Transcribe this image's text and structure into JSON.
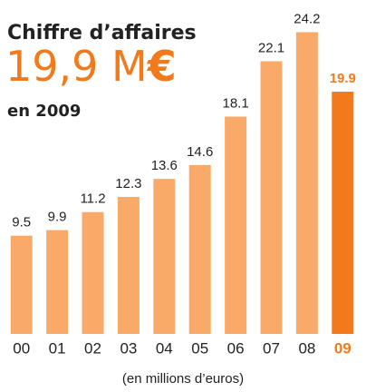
{
  "chart_data": {
    "type": "bar",
    "title": "Chiffre d’affaires",
    "headline_value": "19,9 M",
    "headline_unit": "€",
    "subtitle": "en 2009",
    "xlabel": "(en millions d’euros)",
    "categories": [
      "00",
      "01",
      "02",
      "03",
      "04",
      "05",
      "06",
      "07",
      "08",
      "09"
    ],
    "values": [
      9.5,
      9.9,
      11.2,
      12.3,
      13.6,
      14.6,
      18.1,
      22.1,
      24.2,
      19.9
    ],
    "colors": [
      "#f9aa68",
      "#f9aa68",
      "#f9aa68",
      "#f9aa68",
      "#f9aa68",
      "#f9aa68",
      "#f9aa68",
      "#f9aa68",
      "#f9aa68",
      "#f07a1c"
    ],
    "ylim": [
      2.4,
      26
    ]
  }
}
